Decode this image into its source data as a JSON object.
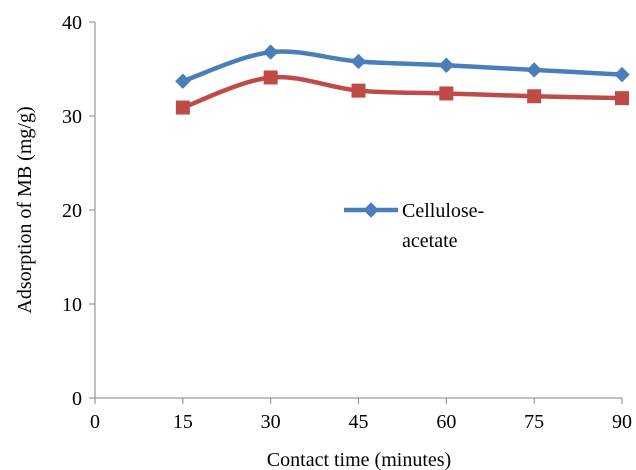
{
  "chart_data": {
    "type": "line",
    "xlabel": "Contact time (minutes)",
    "ylabel": "Adsorption of MB (mg/g)",
    "xlim": [
      0,
      90
    ],
    "ylim": [
      0,
      40
    ],
    "x_ticks": [
      "0",
      "15",
      "30",
      "45",
      "60",
      "75",
      "90"
    ],
    "y_ticks": [
      "0",
      "10",
      "20",
      "30",
      "40"
    ],
    "grid": false,
    "legend_placement": "center",
    "series": [
      {
        "name": "Cellulose-acetate",
        "legend_lines": [
          "Cellulose-",
          "acetate"
        ],
        "color": "#4a7ebb",
        "marker": "diamond",
        "x": [
          15,
          30,
          45,
          60,
          75,
          90
        ],
        "y": [
          33.7,
          36.8,
          35.8,
          35.4,
          34.9,
          34.4
        ]
      },
      {
        "color": "#be4b48",
        "marker": "square",
        "x": [
          15,
          30,
          45,
          60,
          75,
          90
        ],
        "y": [
          30.9,
          34.1,
          32.7,
          32.4,
          32.1,
          31.9
        ]
      }
    ]
  }
}
